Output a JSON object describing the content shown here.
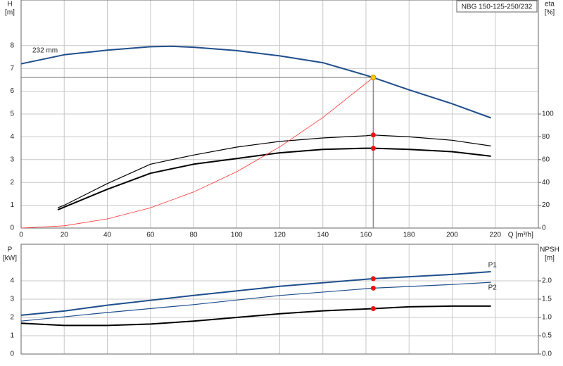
{
  "chart_data": [
    {
      "type": "line",
      "title": "NBG 150-125-250/232",
      "annotation": "232 mm",
      "ylabel": "H",
      "yunit": "[m]",
      "y2label": "eta",
      "y2unit": "[%]",
      "xlabel": "Q [m³/h]",
      "xlim": [
        0,
        240
      ],
      "xticks": [
        0,
        20,
        40,
        60,
        80,
        100,
        120,
        140,
        160,
        180,
        200,
        220
      ],
      "ylim": [
        0,
        10
      ],
      "yticks": [
        0,
        1,
        2,
        3,
        4,
        5,
        6,
        7,
        8
      ],
      "y2lim": [
        0,
        200
      ],
      "y2ticks": [
        0,
        20,
        40,
        60,
        80,
        100
      ],
      "grid": true,
      "series": [
        {
          "color": "#1f4e8c",
          "width": 2,
          "x": [
            0,
            20,
            40,
            60,
            70,
            80,
            100,
            120,
            140,
            160,
            163.4,
            180,
            200,
            218
          ],
          "values": [
            7.2,
            7.6,
            7.8,
            7.95,
            7.97,
            7.93,
            7.78,
            7.55,
            7.25,
            6.7,
            6.6,
            6.06,
            5.45,
            4.83
          ]
        },
        {
          "color": "#000000",
          "width": 1.2,
          "axis": "y2",
          "x": [
            17,
            20,
            40,
            60,
            80,
            100,
            120,
            140,
            160,
            163.4,
            180,
            200,
            218
          ],
          "values": [
            17.8,
            20,
            39,
            56,
            64,
            71,
            76,
            79,
            81,
            81.6,
            80,
            77,
            72
          ]
        },
        {
          "color": "#000000",
          "width": 2,
          "axis": "y2",
          "x": [
            17,
            20,
            40,
            60,
            80,
            100,
            120,
            140,
            160,
            163.4,
            180,
            200,
            218
          ],
          "values": [
            16,
            18.4,
            34,
            48,
            56,
            61,
            66,
            69,
            70,
            70,
            69,
            67,
            63
          ]
        },
        {
          "color": "#ff3030",
          "width": 0.8,
          "x": [
            0,
            20,
            40,
            60,
            80,
            100,
            120,
            140,
            163.4
          ],
          "values": [
            0,
            0.1,
            0.4,
            0.89,
            1.58,
            2.47,
            3.56,
            4.85,
            6.6
          ]
        }
      ],
      "points": [
        {
          "x": 163.4,
          "y": 6.6,
          "color": "#ffcc00"
        },
        {
          "x": 163.4,
          "y": 81.6,
          "color": "#ee1111",
          "axis": "y2"
        },
        {
          "x": 163.4,
          "y": 70,
          "color": "#ee1111",
          "axis": "y2"
        }
      ]
    },
    {
      "type": "line",
      "ylabel": "P",
      "yunit": "[kW]",
      "y2label": "NPSH",
      "y2unit": "[m]",
      "xlim": [
        0,
        240
      ],
      "xticks": [
        0,
        20,
        40,
        60,
        80,
        100,
        120,
        140,
        160,
        180,
        200,
        220
      ],
      "ylim": [
        0,
        6
      ],
      "yticks": [
        0,
        1,
        2,
        3,
        4
      ],
      "y2lim": [
        0,
        3
      ],
      "y2ticks": [
        {
          "value": 0,
          "label": "0.0"
        },
        {
          "value": 0.5,
          "label": "0.5"
        },
        {
          "value": 1,
          "label": "1.0"
        },
        1.5,
        {
          "value": 2,
          "label": "2.0"
        }
      ],
      "grid": true,
      "series": [
        {
          "name": "P1",
          "color": "#1f4e8c",
          "width": 2,
          "x": [
            0,
            20,
            40,
            80,
            120,
            163.4,
            200,
            218
          ],
          "values": [
            2.12,
            2.35,
            2.67,
            3.2,
            3.7,
            4.12,
            4.35,
            4.5
          ]
        },
        {
          "name": "P2",
          "color": "#1f4e8c",
          "width": 1.2,
          "x": [
            0,
            40,
            80,
            120,
            163.4,
            200,
            218
          ],
          "values": [
            1.8,
            2.27,
            2.7,
            3.2,
            3.6,
            3.8,
            3.92
          ]
        },
        {
          "color": "#000000",
          "width": 2,
          "axis": "y2",
          "x": [
            0,
            20,
            40,
            60,
            80,
            100,
            120,
            140,
            163.4,
            180,
            200,
            218
          ],
          "values": [
            0.84,
            0.78,
            0.78,
            0.82,
            0.9,
            1.0,
            1.1,
            1.18,
            1.24,
            1.29,
            1.31,
            1.31
          ]
        }
      ],
      "points": [
        {
          "x": 163.4,
          "y": 4.12,
          "color": "#ee1111"
        },
        {
          "x": 163.4,
          "y": 3.6,
          "color": "#ee1111"
        },
        {
          "x": 163.4,
          "y": 1.24,
          "color": "#ee1111",
          "axis": "y2"
        }
      ]
    }
  ]
}
